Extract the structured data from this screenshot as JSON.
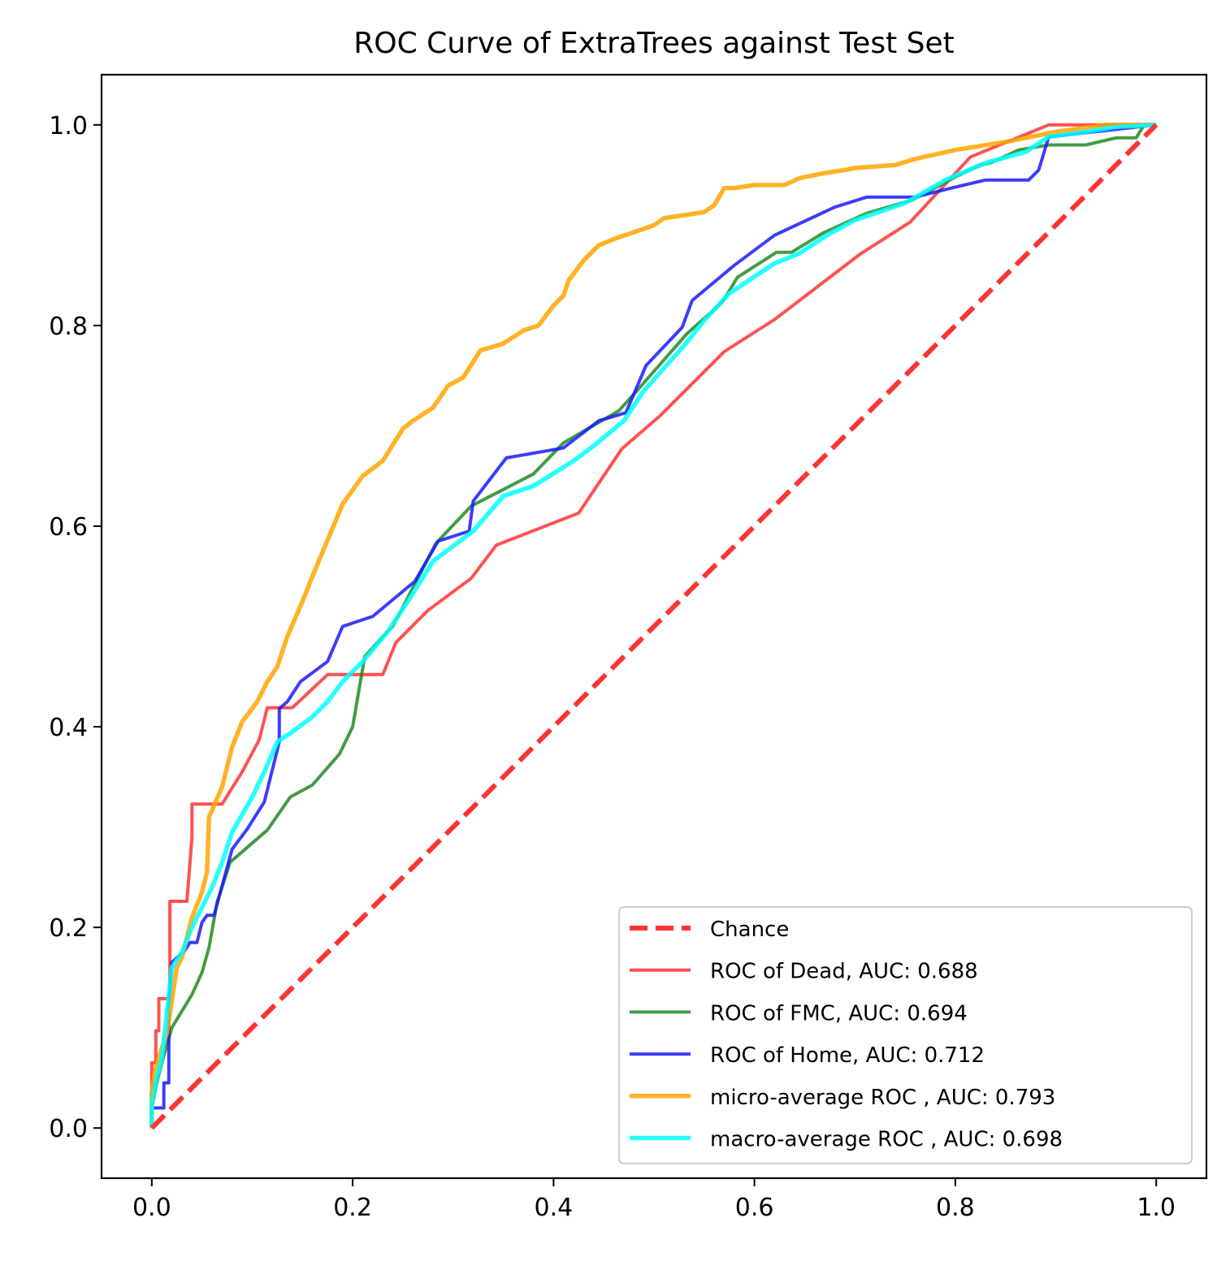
{
  "chart_data": {
    "type": "line",
    "title": "ROC Curve of ExtraTrees against Test Set",
    "xlabel": "",
    "ylabel": "",
    "xlim": [
      -0.05,
      1.05
    ],
    "ylim": [
      -0.05,
      1.05
    ],
    "x_ticks": [
      "0.0",
      "0.2",
      "0.4",
      "0.6",
      "0.8",
      "1.0"
    ],
    "y_ticks": [
      "0.0",
      "0.2",
      "0.4",
      "0.6",
      "0.8",
      "1.0"
    ],
    "grid": false,
    "legend_position": "lower-right",
    "series": [
      {
        "name": "Chance",
        "color": "#ff3333",
        "dashed": true,
        "points": [
          [
            0.0,
            0.0
          ],
          [
            1.0,
            1.0
          ]
        ]
      },
      {
        "name": "ROC of Dead, AUC: 0.688",
        "color": "#ff3333",
        "dashed": false,
        "points": [
          [
            0.0,
            0.0
          ],
          [
            0.0,
            0.065
          ],
          [
            0.004,
            0.065
          ],
          [
            0.004,
            0.097
          ],
          [
            0.007,
            0.097
          ],
          [
            0.007,
            0.129
          ],
          [
            0.018,
            0.129
          ],
          [
            0.018,
            0.226
          ],
          [
            0.035,
            0.226
          ],
          [
            0.04,
            0.29
          ],
          [
            0.04,
            0.323
          ],
          [
            0.07,
            0.323
          ],
          [
            0.09,
            0.355
          ],
          [
            0.107,
            0.387
          ],
          [
            0.115,
            0.419
          ],
          [
            0.14,
            0.419
          ],
          [
            0.175,
            0.452
          ],
          [
            0.23,
            0.452
          ],
          [
            0.243,
            0.484
          ],
          [
            0.275,
            0.516
          ],
          [
            0.318,
            0.548
          ],
          [
            0.343,
            0.581
          ],
          [
            0.425,
            0.613
          ],
          [
            0.468,
            0.677
          ],
          [
            0.506,
            0.71
          ],
          [
            0.57,
            0.774
          ],
          [
            0.62,
            0.806
          ],
          [
            0.705,
            0.871
          ],
          [
            0.755,
            0.903
          ],
          [
            0.815,
            0.968
          ],
          [
            0.893,
            1.0
          ],
          [
            1.0,
            1.0
          ]
        ]
      },
      {
        "name": "ROC of FMC, AUC: 0.694",
        "color": "#228b22",
        "dashed": false,
        "points": [
          [
            0.0,
            0.0
          ],
          [
            0.0,
            0.02
          ],
          [
            0.005,
            0.045
          ],
          [
            0.01,
            0.065
          ],
          [
            0.02,
            0.1
          ],
          [
            0.04,
            0.133
          ],
          [
            0.05,
            0.155
          ],
          [
            0.057,
            0.18
          ],
          [
            0.065,
            0.225
          ],
          [
            0.078,
            0.265
          ],
          [
            0.115,
            0.297
          ],
          [
            0.138,
            0.33
          ],
          [
            0.16,
            0.342
          ],
          [
            0.187,
            0.373
          ],
          [
            0.2,
            0.4
          ],
          [
            0.212,
            0.47
          ],
          [
            0.23,
            0.49
          ],
          [
            0.24,
            0.5
          ],
          [
            0.283,
            0.583
          ],
          [
            0.318,
            0.62
          ],
          [
            0.38,
            0.652
          ],
          [
            0.41,
            0.683
          ],
          [
            0.465,
            0.715
          ],
          [
            0.483,
            0.735
          ],
          [
            0.533,
            0.792
          ],
          [
            0.568,
            0.823
          ],
          [
            0.583,
            0.848
          ],
          [
            0.622,
            0.873
          ],
          [
            0.637,
            0.873
          ],
          [
            0.668,
            0.892
          ],
          [
            0.712,
            0.912
          ],
          [
            0.757,
            0.925
          ],
          [
            0.8,
            0.948
          ],
          [
            0.825,
            0.96
          ],
          [
            0.835,
            0.962
          ],
          [
            0.863,
            0.975
          ],
          [
            0.893,
            0.98
          ],
          [
            0.93,
            0.98
          ],
          [
            0.96,
            0.987
          ],
          [
            0.98,
            0.987
          ],
          [
            0.988,
            1.0
          ],
          [
            1.0,
            1.0
          ]
        ]
      },
      {
        "name": "ROC of Home, AUC: 0.712",
        "color": "#1a1aff",
        "dashed": false,
        "points": [
          [
            0.0,
            0.0
          ],
          [
            0.0,
            0.02
          ],
          [
            0.008,
            0.02
          ],
          [
            0.008,
            0.02
          ],
          [
            0.012,
            0.02
          ],
          [
            0.012,
            0.045
          ],
          [
            0.017,
            0.045
          ],
          [
            0.017,
            0.12
          ],
          [
            0.02,
            0.165
          ],
          [
            0.033,
            0.177
          ],
          [
            0.038,
            0.185
          ],
          [
            0.045,
            0.185
          ],
          [
            0.05,
            0.205
          ],
          [
            0.055,
            0.212
          ],
          [
            0.062,
            0.212
          ],
          [
            0.08,
            0.278
          ],
          [
            0.095,
            0.298
          ],
          [
            0.112,
            0.325
          ],
          [
            0.127,
            0.385
          ],
          [
            0.127,
            0.418
          ],
          [
            0.135,
            0.425
          ],
          [
            0.148,
            0.445
          ],
          [
            0.175,
            0.465
          ],
          [
            0.19,
            0.5
          ],
          [
            0.22,
            0.51
          ],
          [
            0.262,
            0.545
          ],
          [
            0.285,
            0.585
          ],
          [
            0.316,
            0.595
          ],
          [
            0.32,
            0.625
          ],
          [
            0.353,
            0.668
          ],
          [
            0.41,
            0.678
          ],
          [
            0.445,
            0.705
          ],
          [
            0.472,
            0.713
          ],
          [
            0.492,
            0.76
          ],
          [
            0.528,
            0.798
          ],
          [
            0.538,
            0.825
          ],
          [
            0.58,
            0.86
          ],
          [
            0.62,
            0.89
          ],
          [
            0.68,
            0.918
          ],
          [
            0.712,
            0.928
          ],
          [
            0.76,
            0.928
          ],
          [
            0.8,
            0.938
          ],
          [
            0.83,
            0.945
          ],
          [
            0.873,
            0.945
          ],
          [
            0.883,
            0.955
          ],
          [
            0.893,
            0.988
          ],
          [
            1.0,
            1.0
          ]
        ]
      },
      {
        "name": "micro-average ROC , AUC: 0.793",
        "color": "#ffa500",
        "dashed": false,
        "points": [
          [
            0.0,
            0.0
          ],
          [
            0.0,
            0.035
          ],
          [
            0.003,
            0.055
          ],
          [
            0.007,
            0.07
          ],
          [
            0.015,
            0.095
          ],
          [
            0.025,
            0.16
          ],
          [
            0.03,
            0.17
          ],
          [
            0.04,
            0.21
          ],
          [
            0.05,
            0.235
          ],
          [
            0.055,
            0.255
          ],
          [
            0.057,
            0.31
          ],
          [
            0.07,
            0.34
          ],
          [
            0.08,
            0.38
          ],
          [
            0.09,
            0.405
          ],
          [
            0.105,
            0.425
          ],
          [
            0.115,
            0.445
          ],
          [
            0.125,
            0.46
          ],
          [
            0.135,
            0.49
          ],
          [
            0.15,
            0.525
          ],
          [
            0.16,
            0.55
          ],
          [
            0.19,
            0.622
          ],
          [
            0.21,
            0.65
          ],
          [
            0.23,
            0.665
          ],
          [
            0.25,
            0.697
          ],
          [
            0.26,
            0.705
          ],
          [
            0.28,
            0.718
          ],
          [
            0.295,
            0.74
          ],
          [
            0.31,
            0.748
          ],
          [
            0.327,
            0.775
          ],
          [
            0.35,
            0.782
          ],
          [
            0.37,
            0.795
          ],
          [
            0.385,
            0.8
          ],
          [
            0.4,
            0.82
          ],
          [
            0.41,
            0.83
          ],
          [
            0.415,
            0.845
          ],
          [
            0.43,
            0.865
          ],
          [
            0.445,
            0.88
          ],
          [
            0.465,
            0.888
          ],
          [
            0.48,
            0.893
          ],
          [
            0.5,
            0.9
          ],
          [
            0.51,
            0.907
          ],
          [
            0.53,
            0.91
          ],
          [
            0.55,
            0.913
          ],
          [
            0.56,
            0.92
          ],
          [
            0.57,
            0.937
          ],
          [
            0.58,
            0.937
          ],
          [
            0.6,
            0.94
          ],
          [
            0.63,
            0.94
          ],
          [
            0.645,
            0.947
          ],
          [
            0.67,
            0.952
          ],
          [
            0.69,
            0.955
          ],
          [
            0.7,
            0.957
          ],
          [
            0.74,
            0.96
          ],
          [
            0.76,
            0.966
          ],
          [
            0.8,
            0.975
          ],
          [
            0.85,
            0.983
          ],
          [
            0.9,
            0.993
          ],
          [
            0.95,
            1.0
          ],
          [
            1.0,
            1.0
          ]
        ]
      },
      {
        "name": "macro-average ROC , AUC: 0.698",
        "color": "#00ffff",
        "dashed": false,
        "points": [
          [
            0.0,
            0.0
          ],
          [
            0.0,
            0.025
          ],
          [
            0.005,
            0.05
          ],
          [
            0.01,
            0.07
          ],
          [
            0.02,
            0.16
          ],
          [
            0.03,
            0.175
          ],
          [
            0.04,
            0.2
          ],
          [
            0.05,
            0.22
          ],
          [
            0.06,
            0.24
          ],
          [
            0.07,
            0.265
          ],
          [
            0.08,
            0.295
          ],
          [
            0.1,
            0.33
          ],
          [
            0.112,
            0.355
          ],
          [
            0.125,
            0.385
          ],
          [
            0.14,
            0.395
          ],
          [
            0.16,
            0.41
          ],
          [
            0.175,
            0.425
          ],
          [
            0.19,
            0.445
          ],
          [
            0.21,
            0.465
          ],
          [
            0.235,
            0.495
          ],
          [
            0.255,
            0.525
          ],
          [
            0.28,
            0.565
          ],
          [
            0.32,
            0.595
          ],
          [
            0.35,
            0.63
          ],
          [
            0.38,
            0.64
          ],
          [
            0.42,
            0.665
          ],
          [
            0.44,
            0.68
          ],
          [
            0.47,
            0.705
          ],
          [
            0.49,
            0.735
          ],
          [
            0.53,
            0.78
          ],
          [
            0.55,
            0.805
          ],
          [
            0.575,
            0.832
          ],
          [
            0.62,
            0.862
          ],
          [
            0.645,
            0.872
          ],
          [
            0.672,
            0.89
          ],
          [
            0.7,
            0.905
          ],
          [
            0.75,
            0.922
          ],
          [
            0.79,
            0.945
          ],
          [
            0.83,
            0.962
          ],
          [
            0.87,
            0.973
          ],
          [
            0.893,
            0.988
          ],
          [
            0.93,
            0.993
          ],
          [
            0.96,
            0.998
          ],
          [
            1.0,
            1.0
          ]
        ]
      }
    ]
  }
}
